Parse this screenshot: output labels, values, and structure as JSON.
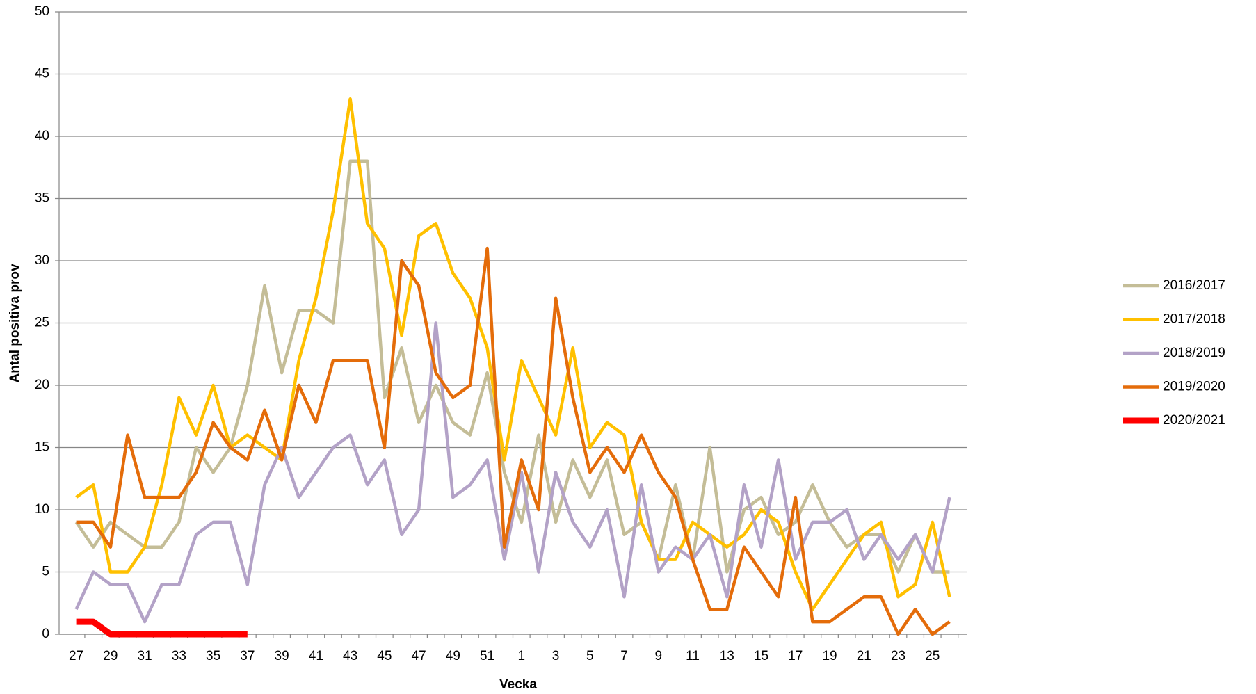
{
  "chart_data": {
    "type": "line",
    "y_label": "Antal positiva prov",
    "x_label": "Vecka",
    "categories": [
      "27",
      null,
      "29",
      null,
      "31",
      null,
      "33",
      null,
      "35",
      null,
      "37",
      null,
      "39",
      null,
      "41",
      null,
      "43",
      null,
      "45",
      null,
      "47",
      null,
      "49",
      null,
      "51",
      null,
      "1",
      null,
      "3",
      null,
      "5",
      null,
      "7",
      null,
      "9",
      null,
      "11",
      null,
      "13",
      null,
      "15",
      null,
      "17",
      null,
      "19",
      null,
      "21",
      null,
      "23",
      null,
      "25",
      null
    ],
    "series": [
      {
        "name": "2016/2017",
        "color": "#c4bd97",
        "values": [
          9,
          7,
          9,
          8,
          7,
          7,
          9,
          15,
          13,
          15,
          20,
          28,
          21,
          26,
          26,
          25,
          38,
          38,
          19,
          23,
          17,
          20,
          17,
          16,
          21,
          13,
          9,
          16,
          9,
          14,
          11,
          14,
          8,
          9,
          6,
          12,
          6,
          15,
          5,
          10,
          11,
          8,
          9,
          12,
          9,
          7,
          8,
          8,
          5,
          8,
          5,
          5
        ]
      },
      {
        "name": "2017/2018",
        "color": "#ffc000",
        "values": [
          11,
          12,
          5,
          5,
          7,
          12,
          19,
          16,
          20,
          15,
          16,
          15,
          14,
          22,
          27,
          34,
          43,
          33,
          31,
          24,
          32,
          33,
          29,
          27,
          23,
          14,
          22,
          19,
          16,
          23,
          15,
          17,
          16,
          9,
          6,
          6,
          9,
          8,
          7,
          8,
          10,
          9,
          5,
          2,
          4,
          6,
          8,
          9,
          3,
          4,
          9,
          3
        ]
      },
      {
        "name": "2018/2019",
        "color": "#b3a2c7",
        "values": [
          2,
          5,
          4,
          4,
          1,
          4,
          4,
          8,
          9,
          9,
          4,
          12,
          15,
          11,
          13,
          15,
          16,
          12,
          14,
          8,
          10,
          25,
          11,
          12,
          14,
          6,
          13,
          5,
          13,
          9,
          7,
          10,
          3,
          12,
          5,
          7,
          6,
          8,
          3,
          12,
          7,
          14,
          6,
          9,
          9,
          10,
          6,
          8,
          6,
          8,
          5,
          11
        ]
      },
      {
        "name": "2019/2020",
        "color": "#e46c0a",
        "values": [
          9,
          9,
          7,
          16,
          11,
          11,
          11,
          13,
          17,
          15,
          14,
          18,
          14,
          20,
          17,
          22,
          22,
          22,
          15,
          30,
          28,
          21,
          19,
          20,
          31,
          7,
          14,
          10,
          27,
          19,
          13,
          15,
          13,
          16,
          13,
          11,
          6,
          2,
          2,
          7,
          5,
          3,
          11,
          1,
          1,
          2,
          3,
          3,
          0,
          2,
          0,
          1
        ]
      },
      {
        "name": "2020/2021",
        "color": "#ff0000",
        "values": [
          1,
          1,
          0,
          0,
          0,
          0,
          0,
          0,
          0,
          0,
          0,
          null,
          null,
          null,
          null,
          null,
          null,
          null,
          null,
          null,
          null,
          null,
          null,
          null,
          null,
          null,
          null,
          null,
          null,
          null,
          null,
          null,
          null,
          null,
          null,
          null,
          null,
          null,
          null,
          null,
          null,
          null,
          null,
          null,
          null,
          null,
          null,
          null,
          null,
          null,
          null,
          null
        ]
      }
    ],
    "ylim": [
      0,
      50
    ],
    "yticks": [
      0,
      5,
      10,
      15,
      20,
      25,
      30,
      35,
      40,
      45,
      50
    ],
    "grid": true,
    "legend": "right"
  }
}
